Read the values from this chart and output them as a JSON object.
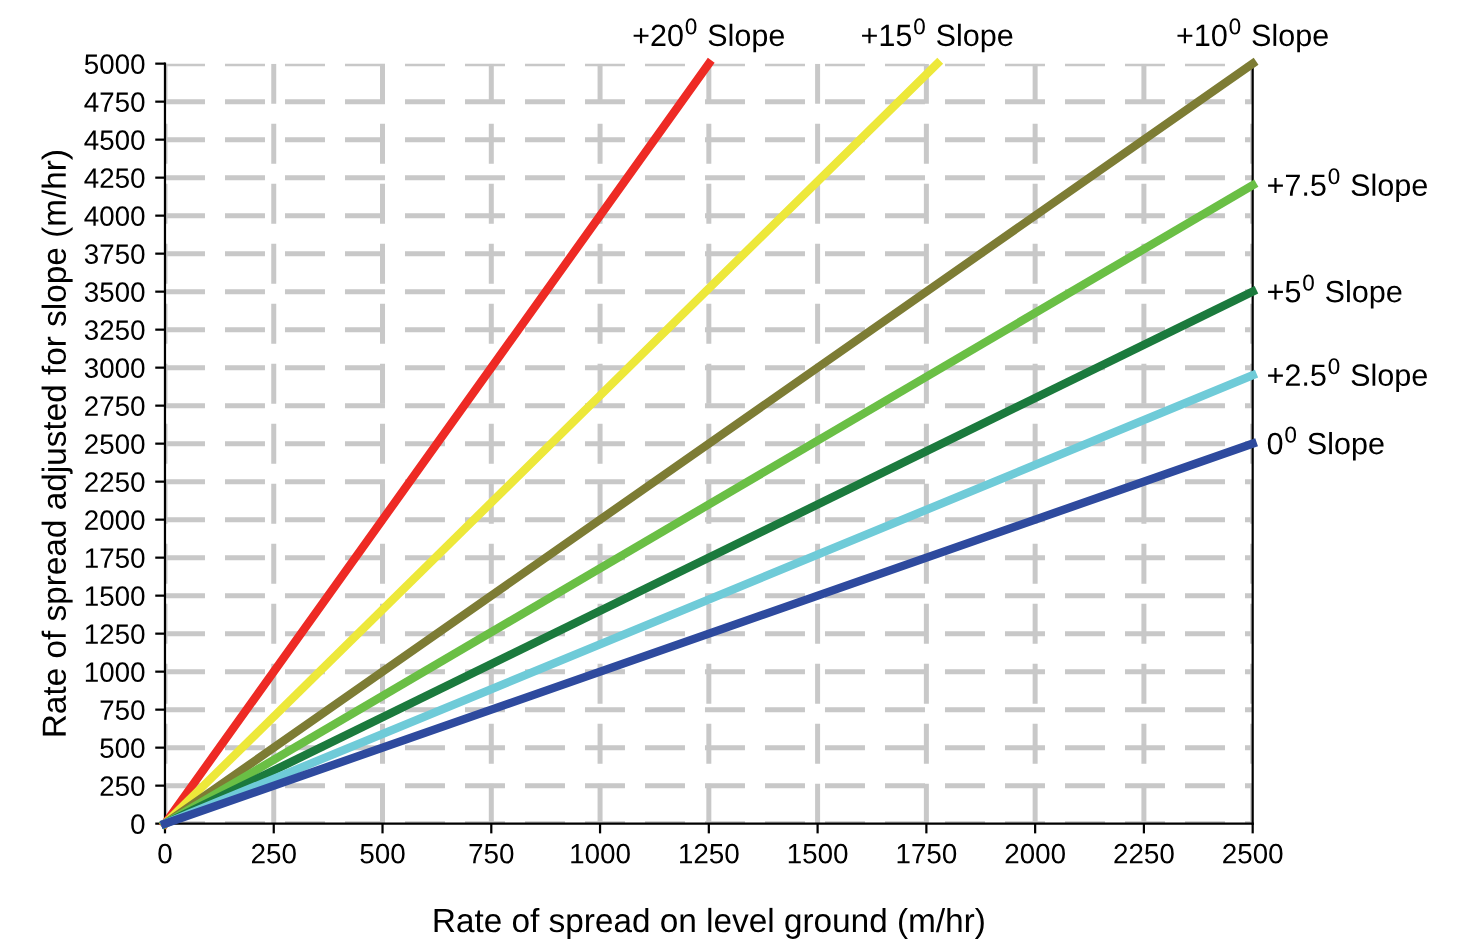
{
  "chart_data": {
    "type": "line",
    "xlabel": "Rate of spread on level ground (m/hr)",
    "ylabel": "Rate of spread adjusted for slope (m/hr)",
    "series": [
      {
        "name": "+20$^{0}$ Slope",
        "color": "#ee2a24",
        "x": [
          0,
          1250
        ],
        "values": [
          0,
          5000
        ]
      },
      {
        "name": "+15$^{0}$ Slope",
        "color": "#ede83a",
        "x": [
          0,
          1775
        ],
        "values": [
          0,
          5000
        ]
      },
      {
        "name": "+10$^{0}$ Slope",
        "color": "#7d7c34",
        "x": [
          0,
          2500
        ],
        "values": [
          0,
          5000
        ]
      },
      {
        "name": "+7.5$^{0}$ Slope",
        "color": "#6abf45",
        "x": [
          0,
          2500
        ],
        "values": [
          0,
          4200
        ]
      },
      {
        "name": "+5$^{0}$ Slope",
        "color": "#1b7a3d",
        "x": [
          0,
          2500
        ],
        "values": [
          0,
          3500
        ]
      },
      {
        "name": "+2.5$^{0}$ Slope",
        "color": "#6fcbd8",
        "x": [
          0,
          2500
        ],
        "values": [
          0,
          2950
        ]
      },
      {
        "name": "0$^{0}$ Slope",
        "color": "#2e4a9e",
        "x": [
          0,
          2500
        ],
        "values": [
          0,
          2500
        ]
      }
    ],
    "xlim": [
      0,
      2500
    ],
    "xticks": [
      0,
      250,
      500,
      750,
      1000,
      1250,
      1500,
      1750,
      2000,
      2250,
      2500
    ],
    "ylim": [
      0,
      5000
    ],
    "yticks": [
      0,
      250,
      500,
      750,
      1000,
      1250,
      1500,
      1750,
      2000,
      2250,
      2500,
      2750,
      3000,
      3250,
      3500,
      3750,
      4000,
      4250,
      4500,
      4750,
      5000
    ],
    "grid": true,
    "legend": false,
    "marker": "none",
    "line_style": "solid"
  }
}
